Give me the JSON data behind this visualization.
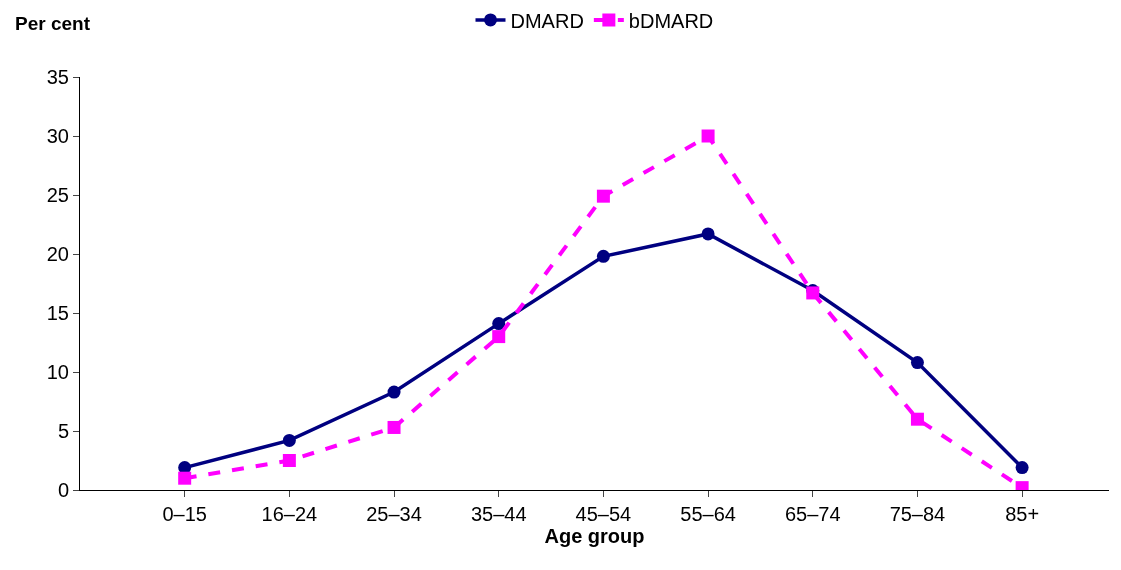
{
  "chart_data": {
    "type": "line",
    "xlabel": "Age group",
    "ylabel": "Per cent",
    "categories": [
      "0–15",
      "16–24",
      "25–34",
      "35–44",
      "45–54",
      "55–64",
      "65–74",
      "75–84",
      "85+"
    ],
    "series": [
      {
        "name": "DMARD",
        "color": "#000080",
        "marker": "circle",
        "line_style": "solid",
        "values": [
          1.9,
          4.2,
          8.3,
          14.1,
          19.8,
          21.7,
          16.9,
          10.8,
          1.9
        ]
      },
      {
        "name": "bDMARD",
        "color": "#ff00ff",
        "marker": "square",
        "line_style": "dashed",
        "values": [
          1.0,
          2.5,
          5.3,
          13.0,
          24.9,
          30.0,
          16.7,
          6.0,
          0.2
        ]
      }
    ],
    "ylim": [
      0,
      35
    ],
    "yticks": [
      0,
      5,
      10,
      15,
      20,
      25,
      30,
      35
    ],
    "legend": "top"
  }
}
